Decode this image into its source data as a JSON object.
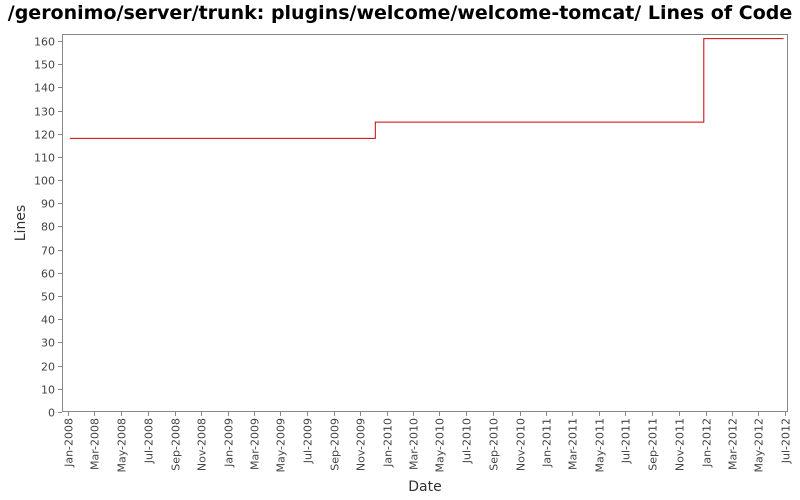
{
  "chart_data": {
    "type": "line",
    "step": true,
    "title": "/geronimo/server/trunk: plugins/welcome/welcome-tomcat/ Lines of Code",
    "xlabel": "Date",
    "ylabel": "Lines",
    "ylim": [
      0,
      163
    ],
    "yticks": [
      0,
      10,
      20,
      30,
      40,
      50,
      60,
      70,
      80,
      90,
      100,
      110,
      120,
      130,
      140,
      150,
      160
    ],
    "xlim": [
      "2007-12-18",
      "2012-07-08"
    ],
    "xticks": [
      "2008-01-01",
      "2008-03-01",
      "2008-05-01",
      "2008-07-01",
      "2008-09-01",
      "2008-11-01",
      "2009-01-01",
      "2009-03-01",
      "2009-05-01",
      "2009-07-01",
      "2009-09-01",
      "2009-11-01",
      "2010-01-01",
      "2010-03-01",
      "2010-05-01",
      "2010-07-01",
      "2010-09-01",
      "2010-11-01",
      "2011-01-01",
      "2011-03-01",
      "2011-05-01",
      "2011-07-01",
      "2011-09-01",
      "2011-11-01",
      "2012-01-01",
      "2012-03-01",
      "2012-05-01",
      "2012-07-01"
    ],
    "xticklabels": [
      "Jan-2008",
      "Mar-2008",
      "May-2008",
      "Jul-2008",
      "Sep-2008",
      "Nov-2008",
      "Jan-2009",
      "Mar-2009",
      "May-2009",
      "Jul-2009",
      "Sep-2009",
      "Nov-2009",
      "Jan-2010",
      "Mar-2010",
      "May-2010",
      "Jul-2010",
      "Sep-2010",
      "Nov-2010",
      "Jan-2011",
      "Mar-2011",
      "May-2011",
      "Jul-2011",
      "Sep-2011",
      "Nov-2011",
      "Jan-2012",
      "Mar-2012",
      "May-2012",
      "Jul-2012"
    ],
    "series": [
      {
        "color": "#cc0000",
        "points": [
          {
            "x": "2008-01-05",
            "y": 118
          },
          {
            "x": "2009-12-05",
            "y": 118
          },
          {
            "x": "2009-12-05",
            "y": 125
          },
          {
            "x": "2011-12-28",
            "y": 125
          },
          {
            "x": "2011-12-28",
            "y": 161
          },
          {
            "x": "2012-06-28",
            "y": 161
          }
        ]
      }
    ],
    "grid": false,
    "legend": "none",
    "background": "#ffffff",
    "plot_border": "#888888"
  }
}
